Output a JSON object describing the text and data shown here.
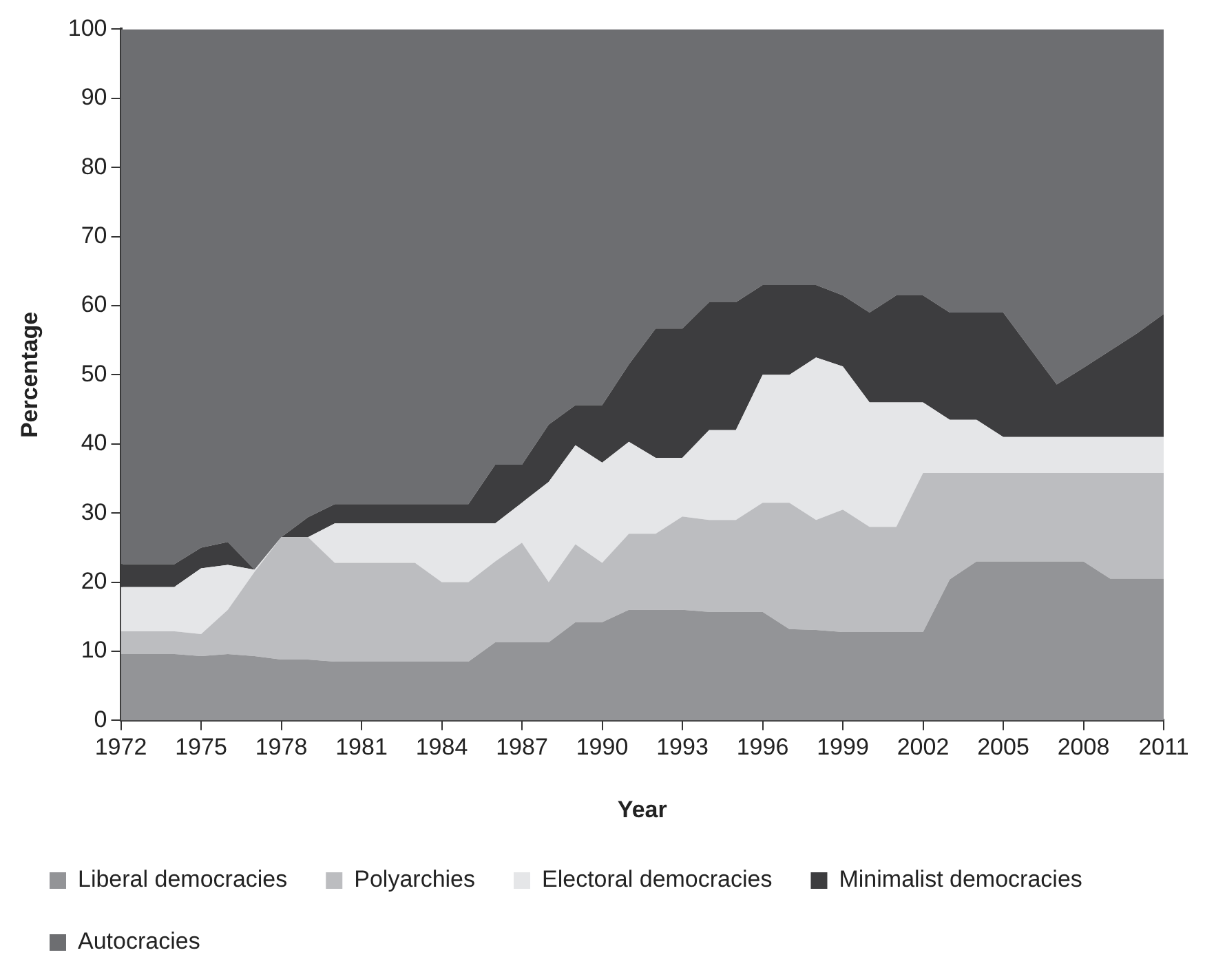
{
  "chart_data": {
    "type": "area",
    "stacked": true,
    "xlabel": "Year",
    "ylabel": "Percentage",
    "x": [
      1972,
      1973,
      1974,
      1975,
      1976,
      1977,
      1978,
      1979,
      1980,
      1981,
      1982,
      1983,
      1984,
      1985,
      1986,
      1987,
      1988,
      1989,
      1990,
      1991,
      1992,
      1993,
      1994,
      1995,
      1996,
      1997,
      1998,
      1999,
      2000,
      2001,
      2002,
      2003,
      2004,
      2005,
      2006,
      2007,
      2008,
      2009,
      2010,
      2011
    ],
    "xlim": [
      1972,
      2011
    ],
    "xticks": [
      1972,
      1975,
      1978,
      1981,
      1984,
      1987,
      1990,
      1993,
      1996,
      1999,
      2002,
      2005,
      2008,
      2011
    ],
    "ylim": [
      0,
      100
    ],
    "yticks": [
      0,
      10,
      20,
      30,
      40,
      50,
      60,
      70,
      80,
      90,
      100
    ],
    "grid": false,
    "legend": "bottom",
    "series": [
      {
        "name": "Liberal democracies",
        "color": "#939497",
        "values": [
          9.6,
          9.6,
          9.6,
          9.3,
          9.6,
          9.3,
          8.8,
          8.8,
          8.5,
          8.5,
          8.5,
          8.5,
          8.5,
          8.5,
          11.3,
          11.3,
          11.3,
          14.2,
          14.2,
          16,
          16,
          16,
          15.7,
          15.7,
          15.7,
          13.2,
          13.1,
          12.8,
          12.8,
          12.8,
          12.8,
          20.4,
          23,
          23,
          23,
          23,
          23,
          20.5,
          20.5,
          20.5
        ]
      },
      {
        "name": "Polyarchies",
        "color": "#bcbdc0",
        "values": [
          3.3,
          3.3,
          3.3,
          3.2,
          6.4,
          12.2,
          17.7,
          17.7,
          14.3,
          14.3,
          14.3,
          14.3,
          11.5,
          11.5,
          11.7,
          14.4,
          8.7,
          11.3,
          8.6,
          11,
          11,
          13.5,
          13.3,
          13.3,
          15.8,
          18.3,
          15.9,
          17.7,
          15.2,
          15.2,
          23,
          15.4,
          12.8,
          12.8,
          12.8,
          12.8,
          12.8,
          15.3,
          15.3,
          15.3
        ]
      },
      {
        "name": "Electoral democracies",
        "color": "#e5e6e8",
        "values": [
          6.4,
          6.4,
          6.4,
          9.5,
          6.5,
          0.3,
          0,
          0,
          5.7,
          5.7,
          5.7,
          5.7,
          8.5,
          8.5,
          5.5,
          5.8,
          14.5,
          14.3,
          14.5,
          13.3,
          11,
          8.5,
          13,
          13,
          18.5,
          18.5,
          23.5,
          20.7,
          18,
          18,
          10.2,
          7.7,
          7.7,
          5.2,
          5.2,
          5.2,
          5.2,
          5.2,
          5.2,
          5.2
        ]
      },
      {
        "name": "Minimalist democracies",
        "color": "#3d3d3f",
        "values": [
          3.3,
          3.3,
          3.3,
          3,
          3.3,
          0,
          0,
          2.9,
          2.8,
          2.8,
          2.8,
          2.8,
          2.8,
          2.8,
          8.5,
          5.5,
          8.3,
          5.8,
          8.3,
          11.2,
          18.7,
          18.7,
          18.5,
          18.5,
          13,
          13,
          10.5,
          10.3,
          13,
          15.5,
          15.5,
          15.5,
          15.5,
          18,
          12.8,
          7.6,
          10,
          12.5,
          15,
          17.8
        ]
      },
      {
        "name": "Autocracies",
        "color": "#6d6e71",
        "values": [
          77.4,
          77.4,
          77.4,
          75,
          74.2,
          78.2,
          73.5,
          70.6,
          68.7,
          68.7,
          68.7,
          68.7,
          68.7,
          68.7,
          63,
          63,
          57.2,
          54.4,
          54.4,
          48.5,
          43.3,
          43.3,
          39.5,
          39.5,
          37,
          37,
          37,
          38.5,
          41,
          38.5,
          38.5,
          41,
          41,
          41,
          46.2,
          51.4,
          49,
          46.5,
          44,
          41.2
        ]
      }
    ]
  }
}
